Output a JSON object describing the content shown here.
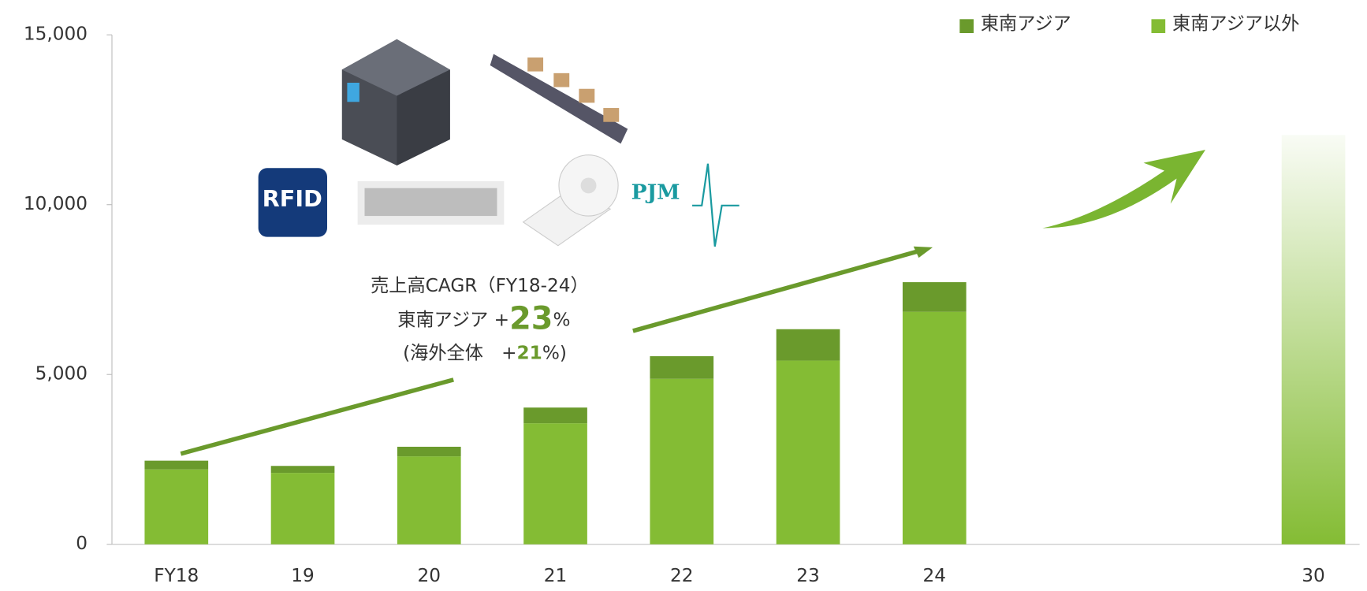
{
  "chart_data": {
    "type": "stacked_bar",
    "categories": [
      "FY18",
      "19",
      "20",
      "21",
      "22",
      "23",
      "24",
      null,
      null,
      "30"
    ],
    "series": [
      {
        "name": "東南アジア以外",
        "color": "#84bc34",
        "values": [
          2205,
          2103,
          2590,
          3564,
          4872,
          5410,
          6846,
          null,
          null,
          12050
        ]
      },
      {
        "name": "東南アジア",
        "color": "#6a9a2c",
        "values": [
          257,
          205,
          282,
          462,
          666,
          923,
          872,
          null,
          null,
          null
        ]
      }
    ],
    "gradient_categories": [
      "30"
    ],
    "ylim": [
      0,
      15000
    ],
    "yticks": [
      0,
      {
        "value": 5000,
        "label": "5,000"
      },
      {
        "value": 10000,
        "label": "10,000"
      },
      {
        "value": 15000,
        "label": "15,000"
      }
    ],
    "grid": false,
    "legend": "top-right",
    "annotation": {
      "cagr_title": "売上高CAGR（FY18-24）",
      "sea_label": "東南アジア +",
      "sea_value": "23",
      "percent": "%",
      "overall_label": "(海外全体　+",
      "overall_value": "21",
      "overall_suffix": "%)"
    },
    "logos": {
      "rfid": "RFID",
      "pjm": "PJM"
    }
  }
}
